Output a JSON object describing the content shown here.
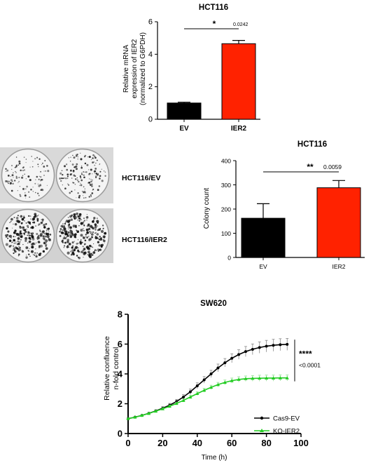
{
  "chart_data": [
    {
      "type": "bar",
      "title": "HCT116",
      "ylabel_lines": [
        "Relative mRNA",
        "expression of IER2",
        "(normalized to G6PDH)"
      ],
      "categories": [
        "EV",
        "IER2"
      ],
      "values": [
        1.0,
        4.65
      ],
      "errors": [
        0.05,
        0.2
      ],
      "colors": [
        "#000000",
        "#ff2200"
      ],
      "ylim": [
        0,
        6
      ],
      "yticks": [
        0,
        2,
        4,
        6
      ],
      "significance": {
        "stars": "*",
        "p_value": "0.0242"
      }
    },
    {
      "type": "bar",
      "title": "HCT116",
      "ylabel": "Colony count",
      "categories": [
        "EV",
        "IER2"
      ],
      "values": [
        162,
        288
      ],
      "errors": [
        60,
        30
      ],
      "colors": [
        "#000000",
        "#ff2200"
      ],
      "ylim": [
        0,
        400
      ],
      "yticks": [
        0,
        100,
        200,
        300,
        400
      ],
      "significance": {
        "stars": "**",
        "p_value": "0.0059"
      }
    },
    {
      "type": "line",
      "title": "SW620",
      "xlabel": "Time (h)",
      "ylabel_lines": [
        "Relative confluence",
        "n-fold control"
      ],
      "xlim": [
        0,
        100
      ],
      "ylim": [
        0,
        8
      ],
      "xticks": [
        0,
        20,
        40,
        60,
        80,
        100
      ],
      "yticks": [
        0,
        2,
        4,
        6,
        8
      ],
      "legend_position": "bottom-right",
      "significance": {
        "stars": "****",
        "p_value": "<0.0001"
      },
      "series": [
        {
          "name": "Cas9-EV",
          "color": "#000000",
          "marker": "circle",
          "x": [
            0,
            4,
            8,
            12,
            16,
            20,
            24,
            28,
            32,
            36,
            40,
            44,
            48,
            52,
            56,
            60,
            64,
            68,
            72,
            76,
            80,
            84,
            88,
            92
          ],
          "y": [
            1.0,
            1.1,
            1.22,
            1.36,
            1.52,
            1.7,
            1.9,
            2.15,
            2.45,
            2.8,
            3.2,
            3.6,
            4.0,
            4.4,
            4.75,
            5.05,
            5.3,
            5.5,
            5.65,
            5.77,
            5.86,
            5.92,
            5.96,
            5.98
          ],
          "err": [
            0.02,
            0.04,
            0.05,
            0.06,
            0.08,
            0.1,
            0.12,
            0.14,
            0.16,
            0.18,
            0.2,
            0.22,
            0.24,
            0.26,
            0.28,
            0.3,
            0.32,
            0.34,
            0.36,
            0.38,
            0.39,
            0.4,
            0.4,
            0.4
          ]
        },
        {
          "name": "KO-IER2",
          "color": "#22cc22",
          "marker": "triangle",
          "x": [
            0,
            4,
            8,
            12,
            16,
            20,
            24,
            28,
            32,
            36,
            40,
            44,
            48,
            52,
            56,
            60,
            64,
            68,
            72,
            76,
            80,
            84,
            88,
            92
          ],
          "y": [
            1.0,
            1.1,
            1.22,
            1.35,
            1.5,
            1.66,
            1.83,
            2.02,
            2.22,
            2.45,
            2.68,
            2.9,
            3.1,
            3.28,
            3.43,
            3.55,
            3.63,
            3.68,
            3.7,
            3.71,
            3.72,
            3.72,
            3.73,
            3.73
          ],
          "err": [
            0.02,
            0.03,
            0.04,
            0.05,
            0.06,
            0.07,
            0.08,
            0.09,
            0.1,
            0.11,
            0.12,
            0.13,
            0.14,
            0.15,
            0.16,
            0.17,
            0.18,
            0.18,
            0.19,
            0.2,
            0.2,
            0.2,
            0.2,
            0.2
          ]
        }
      ]
    }
  ],
  "plate_labels": [
    "HCT116/EV",
    "HCT116/IER2"
  ],
  "colony_image_desc": "colony formation plates"
}
